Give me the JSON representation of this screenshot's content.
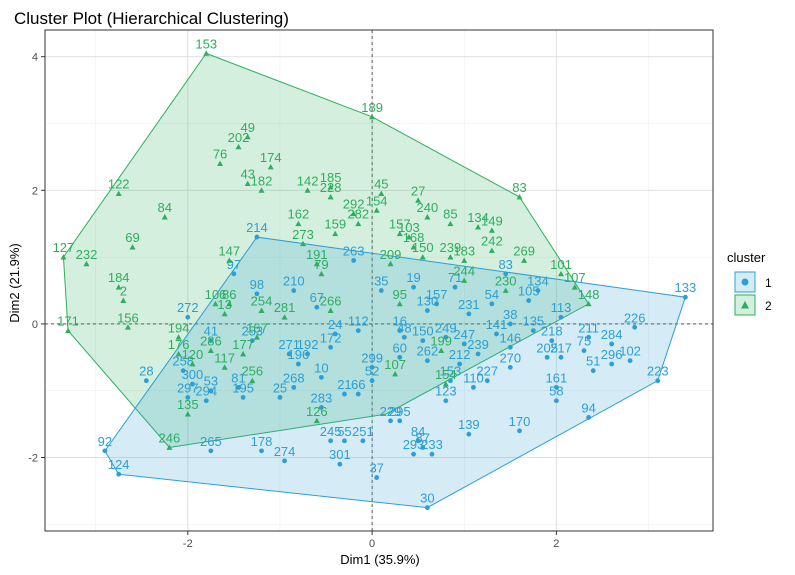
{
  "chart_data": {
    "type": "scatter",
    "title": "Cluster Plot (Hierarchical Clustering)",
    "xlabel": "Dim1 (35.9%)",
    "ylabel": "Dim2 (21.9%)",
    "xlim": [
      -3.55,
      3.7
    ],
    "ylim": [
      -3.1,
      4.4
    ],
    "xticks": [
      -2,
      0,
      2
    ],
    "yticks": [
      -2,
      0,
      2,
      4
    ],
    "grid": true,
    "legend": {
      "title": "cluster",
      "position": "right",
      "entries": [
        {
          "label": "1",
          "color": "#2b9fd6",
          "marker": "circle"
        },
        {
          "label": "2",
          "color": "#2eae5f",
          "marker": "triangle"
        }
      ]
    },
    "colors": {
      "cluster1": "#2b9fd6",
      "cluster2": "#2eae5f"
    },
    "hulls": {
      "2": [
        [
          -1.8,
          4.05
        ],
        [
          0.0,
          3.1
        ],
        [
          1.6,
          1.9
        ],
        [
          2.35,
          0.3
        ],
        [
          0.15,
          -1.35
        ],
        [
          -2.2,
          -1.85
        ],
        [
          -3.3,
          -0.1
        ],
        [
          -3.35,
          1.0
        ]
      ],
      "1": [
        [
          3.4,
          0.4
        ],
        [
          3.1,
          -0.85
        ],
        [
          0.6,
          -2.75
        ],
        [
          -2.75,
          -2.25
        ],
        [
          -2.9,
          -1.9
        ],
        [
          -1.25,
          1.3
        ]
      ]
    },
    "series": [
      {
        "name": "1",
        "points": [
          {
            "label": "133",
            "x": 3.4,
            "y": 0.4
          },
          {
            "label": "226",
            "x": 2.85,
            "y": -0.05
          },
          {
            "label": "223",
            "x": 3.1,
            "y": -0.85
          },
          {
            "label": "284",
            "x": 2.6,
            "y": -0.3
          },
          {
            "label": "102",
            "x": 2.8,
            "y": -0.55
          },
          {
            "label": "211",
            "x": 2.35,
            "y": -0.2
          },
          {
            "label": "75",
            "x": 2.3,
            "y": -0.4
          },
          {
            "label": "296",
            "x": 2.6,
            "y": -0.6
          },
          {
            "label": "51",
            "x": 2.4,
            "y": -0.7
          },
          {
            "label": "217",
            "x": 2.05,
            "y": -0.5
          },
          {
            "label": "205",
            "x": 1.9,
            "y": -0.5
          },
          {
            "label": "161",
            "x": 2.0,
            "y": -0.95
          },
          {
            "label": "58",
            "x": 2.0,
            "y": -1.15
          },
          {
            "label": "94",
            "x": 2.35,
            "y": -1.4
          },
          {
            "label": "170",
            "x": 1.6,
            "y": -1.6
          },
          {
            "label": "113",
            "x": 2.05,
            "y": 0.1
          },
          {
            "label": "218",
            "x": 1.95,
            "y": -0.25
          },
          {
            "label": "135",
            "x": 1.75,
            "y": -0.1
          },
          {
            "label": "227",
            "x": 1.25,
            "y": -0.85
          },
          {
            "label": "110",
            "x": 1.1,
            "y": -0.95
          },
          {
            "label": "270",
            "x": 1.5,
            "y": -0.65
          },
          {
            "label": "139",
            "x": 1.05,
            "y": -1.65
          },
          {
            "label": "123",
            "x": 0.8,
            "y": -1.15
          },
          {
            "label": "30",
            "x": 0.6,
            "y": -2.75
          },
          {
            "label": "233",
            "x": 0.65,
            "y": -1.95
          },
          {
            "label": "87",
            "x": 0.55,
            "y": -1.85
          },
          {
            "label": "293",
            "x": 0.45,
            "y": -1.95
          },
          {
            "label": "84",
            "x": 0.5,
            "y": -1.75
          },
          {
            "label": "37",
            "x": 0.05,
            "y": -2.3
          },
          {
            "label": "251",
            "x": -0.1,
            "y": -1.75
          },
          {
            "label": "229",
            "x": 0.2,
            "y": -1.45
          },
          {
            "label": "295",
            "x": 0.3,
            "y": -1.45
          },
          {
            "label": "301",
            "x": -0.35,
            "y": -2.1
          },
          {
            "label": "55",
            "x": -0.3,
            "y": -1.75
          },
          {
            "label": "245",
            "x": -0.45,
            "y": -1.75
          },
          {
            "label": "274",
            "x": -0.95,
            "y": -2.05
          },
          {
            "label": "178",
            "x": -1.2,
            "y": -1.9
          },
          {
            "label": "265",
            "x": -1.75,
            "y": -1.9
          },
          {
            "label": "124",
            "x": -2.75,
            "y": -2.25
          },
          {
            "label": "92",
            "x": -2.9,
            "y": -1.9
          },
          {
            "label": "28",
            "x": -2.45,
            "y": -0.85
          },
          {
            "label": "283",
            "x": -0.55,
            "y": -1.25
          },
          {
            "label": "21",
            "x": -0.3,
            "y": -1.05
          },
          {
            "label": "25",
            "x": -1.0,
            "y": -1.1
          },
          {
            "label": "268",
            "x": -0.85,
            "y": -0.95
          },
          {
            "label": "10",
            "x": -0.55,
            "y": -0.8
          },
          {
            "label": "196",
            "x": -0.8,
            "y": -0.6
          },
          {
            "label": "192",
            "x": -0.7,
            "y": -0.45
          },
          {
            "label": "271",
            "x": -0.9,
            "y": -0.45
          },
          {
            "label": "66",
            "x": -0.15,
            "y": -1.05
          },
          {
            "label": "299",
            "x": 0.0,
            "y": -0.65
          },
          {
            "label": "52",
            "x": 0.0,
            "y": -0.85
          },
          {
            "label": "60",
            "x": 0.3,
            "y": -0.5
          },
          {
            "label": "262",
            "x": 0.6,
            "y": -0.55
          },
          {
            "label": "212",
            "x": 0.95,
            "y": -0.6
          },
          {
            "label": "153b",
            "x": 0.85,
            "y": -0.85
          },
          {
            "label": "249",
            "x": 0.8,
            "y": -0.2
          },
          {
            "label": "247",
            "x": 1.0,
            "y": -0.3
          },
          {
            "label": "214",
            "x": -1.25,
            "y": 1.3
          },
          {
            "label": "263",
            "x": -0.2,
            "y": 0.95
          },
          {
            "label": "210",
            "x": -0.85,
            "y": 0.5
          },
          {
            "label": "98",
            "x": -1.25,
            "y": 0.45
          },
          {
            "label": "272",
            "x": -2.0,
            "y": 0.1
          },
          {
            "label": "41",
            "x": -1.75,
            "y": -0.25
          },
          {
            "label": "253",
            "x": -1.3,
            "y": -0.25
          },
          {
            "label": "258",
            "x": -2.05,
            "y": -0.7
          },
          {
            "label": "300",
            "x": -1.95,
            "y": -0.9
          },
          {
            "label": "294",
            "x": -1.8,
            "y": -1.15
          },
          {
            "label": "195",
            "x": -1.4,
            "y": -1.1
          },
          {
            "label": "297",
            "x": -2.0,
            "y": -1.1
          },
          {
            "label": "53",
            "x": -1.75,
            "y": -1.0
          },
          {
            "label": "81",
            "x": -1.45,
            "y": -0.95
          },
          {
            "label": "97",
            "x": -1.5,
            "y": 0.75
          },
          {
            "label": "172",
            "x": -0.45,
            "y": -0.35
          },
          {
            "label": "24",
            "x": -0.4,
            "y": -0.15
          },
          {
            "label": "112",
            "x": -0.15,
            "y": -0.1
          },
          {
            "label": "231",
            "x": 1.05,
            "y": 0.15
          },
          {
            "label": "130",
            "x": 0.6,
            "y": 0.2
          },
          {
            "label": "141",
            "x": 1.35,
            "y": -0.15
          },
          {
            "label": "38",
            "x": 1.5,
            "y": 0.0
          },
          {
            "label": "54",
            "x": 1.3,
            "y": 0.3
          },
          {
            "label": "146",
            "x": 1.5,
            "y": -0.35
          },
          {
            "label": "35",
            "x": 0.1,
            "y": 0.5
          },
          {
            "label": "83b",
            "x": 1.45,
            "y": 0.75
          },
          {
            "label": "157",
            "x": 0.7,
            "y": 0.3
          },
          {
            "label": "48",
            "x": 0.35,
            "y": -0.2
          },
          {
            "label": "150",
            "x": 0.55,
            "y": -0.25
          },
          {
            "label": "67",
            "x": -0.6,
            "y": 0.25
          },
          {
            "label": "16",
            "x": 0.3,
            "y": -0.1
          },
          {
            "label": "239b",
            "x": 1.15,
            "y": -0.45
          },
          {
            "label": "71",
            "x": 0.9,
            "y": 0.55
          },
          {
            "label": "19",
            "x": 0.45,
            "y": 0.55
          },
          {
            "label": "105",
            "x": 1.7,
            "y": 0.35
          },
          {
            "label": "134b",
            "x": 1.8,
            "y": 0.5
          }
        ]
      },
      {
        "name": "2",
        "points": [
          {
            "label": "153",
            "x": -1.8,
            "y": 4.05
          },
          {
            "label": "189",
            "x": 0.0,
            "y": 3.1
          },
          {
            "label": "83",
            "x": 1.6,
            "y": 1.9
          },
          {
            "label": "49",
            "x": -1.35,
            "y": 2.8
          },
          {
            "label": "202",
            "x": -1.45,
            "y": 2.65
          },
          {
            "label": "76",
            "x": -1.65,
            "y": 2.4
          },
          {
            "label": "174",
            "x": -1.1,
            "y": 2.35
          },
          {
            "label": "43",
            "x": -1.35,
            "y": 2.1
          },
          {
            "label": "182",
            "x": -1.2,
            "y": 2.0
          },
          {
            "label": "142",
            "x": -0.7,
            "y": 2.0
          },
          {
            "label": "185",
            "x": -0.45,
            "y": 2.05
          },
          {
            "label": "228",
            "x": -0.45,
            "y": 1.9
          },
          {
            "label": "45",
            "x": 0.1,
            "y": 1.95
          },
          {
            "label": "27",
            "x": 0.5,
            "y": 1.85
          },
          {
            "label": "122",
            "x": -2.75,
            "y": 1.95
          },
          {
            "label": "84b",
            "x": -2.25,
            "y": 1.6
          },
          {
            "label": "69",
            "x": -2.6,
            "y": 1.15
          },
          {
            "label": "127",
            "x": -3.35,
            "y": 1.0
          },
          {
            "label": "232",
            "x": -3.1,
            "y": 0.9
          },
          {
            "label": "184",
            "x": -2.75,
            "y": 0.55
          },
          {
            "label": "2",
            "x": -2.7,
            "y": 0.35
          },
          {
            "label": "156",
            "x": -2.65,
            "y": -0.05
          },
          {
            "label": "171",
            "x": -3.3,
            "y": -0.1
          },
          {
            "label": "194",
            "x": -2.1,
            "y": -0.2
          },
          {
            "label": "176",
            "x": -2.1,
            "y": -0.45
          },
          {
            "label": "120",
            "x": -1.95,
            "y": -0.6
          },
          {
            "label": "246",
            "x": -2.2,
            "y": -1.85
          },
          {
            "label": "135b",
            "x": -2.0,
            "y": -1.35
          },
          {
            "label": "147",
            "x": -1.55,
            "y": 0.95
          },
          {
            "label": "162",
            "x": -0.8,
            "y": 1.5
          },
          {
            "label": "292",
            "x": -0.2,
            "y": 1.65
          },
          {
            "label": "154",
            "x": 0.05,
            "y": 1.7
          },
          {
            "label": "282",
            "x": -0.15,
            "y": 1.5
          },
          {
            "label": "240",
            "x": 0.6,
            "y": 1.6
          },
          {
            "label": "85",
            "x": 0.85,
            "y": 1.5
          },
          {
            "label": "134",
            "x": 1.15,
            "y": 1.45
          },
          {
            "label": "149",
            "x": 1.3,
            "y": 1.4
          },
          {
            "label": "242",
            "x": 1.3,
            "y": 1.1
          },
          {
            "label": "269",
            "x": 1.65,
            "y": 0.95
          },
          {
            "label": "101",
            "x": 2.05,
            "y": 0.75
          },
          {
            "label": "107b",
            "x": 2.2,
            "y": 0.55
          },
          {
            "label": "148",
            "x": 2.35,
            "y": 0.3
          },
          {
            "label": "159",
            "x": -0.4,
            "y": 1.35
          },
          {
            "label": "157b",
            "x": 0.3,
            "y": 1.35
          },
          {
            "label": "103",
            "x": 0.4,
            "y": 1.3
          },
          {
            "label": "168",
            "x": 0.45,
            "y": 1.15
          },
          {
            "label": "239",
            "x": 0.85,
            "y": 1.0
          },
          {
            "label": "183",
            "x": 1.0,
            "y": 0.95
          },
          {
            "label": "79",
            "x": -0.55,
            "y": 0.75
          },
          {
            "label": "191",
            "x": -0.6,
            "y": 0.9
          },
          {
            "label": "273",
            "x": -0.75,
            "y": 1.2
          },
          {
            "label": "266",
            "x": -0.45,
            "y": 0.2
          },
          {
            "label": "281",
            "x": -0.95,
            "y": 0.1
          },
          {
            "label": "95",
            "x": 0.3,
            "y": 0.3
          },
          {
            "label": "107",
            "x": 0.25,
            "y": -0.75
          },
          {
            "label": "199",
            "x": 0.75,
            "y": -0.4
          },
          {
            "label": "154b",
            "x": 0.8,
            "y": -0.9
          },
          {
            "label": "126",
            "x": -0.6,
            "y": -1.45
          },
          {
            "label": "256",
            "x": -1.3,
            "y": -0.85
          },
          {
            "label": "117",
            "x": -1.6,
            "y": -0.65
          },
          {
            "label": "177",
            "x": -1.4,
            "y": -0.45
          },
          {
            "label": "286",
            "x": -1.75,
            "y": -0.4
          },
          {
            "label": "167",
            "x": -1.25,
            "y": -0.2
          },
          {
            "label": "13",
            "x": -1.6,
            "y": 0.15
          },
          {
            "label": "86",
            "x": -1.55,
            "y": 0.3
          },
          {
            "label": "106",
            "x": -1.7,
            "y": 0.3
          },
          {
            "label": "254",
            "x": -1.2,
            "y": 0.2
          },
          {
            "label": "244",
            "x": 1.0,
            "y": 0.65
          },
          {
            "label": "230",
            "x": 1.45,
            "y": 0.5
          },
          {
            "label": "209",
            "x": 0.2,
            "y": 0.9
          },
          {
            "label": "150b",
            "x": 0.55,
            "y": 1.0
          }
        ]
      }
    ]
  }
}
